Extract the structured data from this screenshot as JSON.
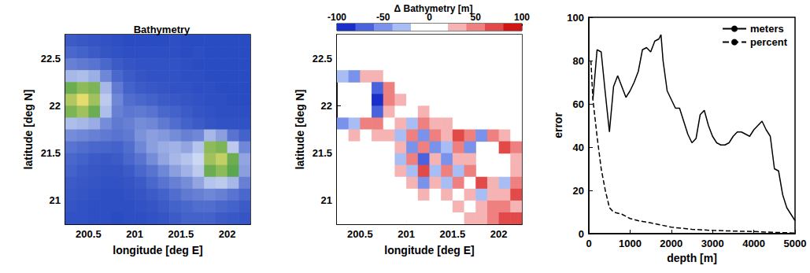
{
  "chart_data": [
    {
      "type": "heatmap",
      "title": "Bathymetry",
      "xlabel": "longitude [deg E]",
      "ylabel": "latitude [deg N]",
      "xlim": [
        200.25,
        202.25
      ],
      "ylim": [
        20.75,
        22.75
      ],
      "xticks": [
        200.5,
        201,
        201.5,
        202
      ],
      "yticks": [
        21,
        21.5,
        22,
        22.5
      ],
      "x": [
        200.3125,
        200.4375,
        200.5625,
        200.6875,
        200.8125,
        200.9375,
        201.0625,
        201.1875,
        201.3125,
        201.4375,
        201.5625,
        201.6875,
        201.8125,
        201.9375,
        202.0625,
        202.1875
      ],
      "y": [
        22.6875,
        22.5625,
        22.4375,
        22.3125,
        22.1875,
        22.0625,
        21.9375,
        21.8125,
        21.6875,
        21.5625,
        21.4375,
        21.3125,
        21.1875,
        21.0625,
        20.9375,
        20.8125
      ],
      "cells": [
        [
          -4200,
          -4300,
          -4400,
          -4500,
          -4600,
          -4700,
          -4700,
          -4700,
          -4700,
          -4600,
          -4700,
          -4700,
          -4700,
          -4700,
          -4700,
          -4700
        ],
        [
          -3800,
          -4000,
          -4200,
          -4400,
          -4500,
          -4600,
          -4600,
          -4600,
          -4600,
          -4600,
          -4700,
          -4600,
          -4700,
          -4700,
          -4700,
          -4700
        ],
        [
          -3000,
          -3200,
          -3400,
          -3800,
          -4200,
          -4400,
          -4500,
          -4500,
          -4500,
          -4500,
          -4600,
          -4700,
          -4700,
          -4700,
          -4700,
          -4700
        ],
        [
          -1200,
          -1000,
          -1500,
          -2800,
          -3800,
          -4200,
          -4400,
          -4500,
          -4500,
          -4500,
          -4600,
          -4600,
          -4700,
          -4700,
          -4700,
          -4700
        ],
        [
          200,
          400,
          300,
          -1200,
          -3200,
          -4000,
          -4200,
          -4300,
          -4400,
          -4500,
          -4500,
          -4600,
          -4600,
          -4700,
          -4700,
          -4700
        ],
        [
          600,
          900,
          500,
          -600,
          -2800,
          -3600,
          -3800,
          -4000,
          -4200,
          -4300,
          -4400,
          -4500,
          -4600,
          -4600,
          -4700,
          -4700
        ],
        [
          300,
          500,
          200,
          -1000,
          -3000,
          -3300,
          -3200,
          -3400,
          -3800,
          -4000,
          -4200,
          -4400,
          -4500,
          -4600,
          -4600,
          -4600
        ],
        [
          -1000,
          -1200,
          -1600,
          -2600,
          -3200,
          -3000,
          -2600,
          -2800,
          -3200,
          -3600,
          -4000,
          -4200,
          -4400,
          -4500,
          -4500,
          -4500
        ],
        [
          -2600,
          -2800,
          -3000,
          -3200,
          -3400,
          -3200,
          -2400,
          -2000,
          -2200,
          -2600,
          -3000,
          -2800,
          -1200,
          -2000,
          -3400,
          -4000
        ],
        [
          -3400,
          -3600,
          -3800,
          -3900,
          -4000,
          -3600,
          -2800,
          -2000,
          -1600,
          -1400,
          -1800,
          -800,
          400,
          300,
          -600,
          -2800
        ],
        [
          -3800,
          -4000,
          -4200,
          -4300,
          -4200,
          -3800,
          -3400,
          -2600,
          -1800,
          -1200,
          -800,
          -200,
          500,
          700,
          200,
          -1800
        ],
        [
          -4000,
          -4200,
          -4300,
          -4400,
          -4400,
          -4200,
          -3800,
          -3400,
          -2800,
          -2000,
          -1400,
          -600,
          200,
          400,
          100,
          -2000
        ],
        [
          -4200,
          -4300,
          -4400,
          -4500,
          -4500,
          -4400,
          -4200,
          -3800,
          -3400,
          -3000,
          -2600,
          -1800,
          -800,
          -600,
          -1200,
          -3000
        ],
        [
          -4300,
          -4400,
          -4500,
          -4600,
          -4600,
          -4500,
          -4400,
          -4200,
          -4000,
          -3600,
          -3200,
          -3000,
          -2800,
          -3000,
          -3400,
          -3800
        ],
        [
          -4400,
          -4500,
          -4600,
          -4600,
          -4600,
          -4600,
          -4500,
          -4400,
          -4200,
          -4000,
          -3800,
          -3600,
          -3600,
          -3800,
          -4000,
          -4200
        ],
        [
          -4500,
          -4500,
          -4600,
          -4600,
          -4700,
          -4600,
          -4600,
          -4500,
          -4400,
          -4200,
          -4000,
          -4000,
          -4000,
          -4200,
          -4300,
          -4400
        ]
      ]
    },
    {
      "type": "heatmap",
      "title": "Δ Bathymetry [m]",
      "xlabel": "longitude [deg E]",
      "ylabel": "latitude [deg N]",
      "xlim": [
        200.25,
        202.25
      ],
      "ylim": [
        20.75,
        22.75
      ],
      "xticks": [
        200.5,
        201,
        201.5,
        202
      ],
      "yticks": [
        21,
        21.5,
        22,
        22.5
      ],
      "x": [
        200.3125,
        200.4375,
        200.5625,
        200.6875,
        200.8125,
        200.9375,
        201.0625,
        201.1875,
        201.3125,
        201.4375,
        201.5625,
        201.6875,
        201.8125,
        201.9375,
        202.0625,
        202.1875
      ],
      "y": [
        22.6875,
        22.5625,
        22.4375,
        22.3125,
        22.1875,
        22.0625,
        21.9375,
        21.8125,
        21.6875,
        21.5625,
        21.4375,
        21.3125,
        21.1875,
        21.0625,
        20.9375,
        20.8125
      ],
      "cells": [
        [
          0,
          0,
          0,
          0,
          0,
          5,
          0,
          0,
          0,
          0,
          0,
          0,
          0,
          0,
          0,
          0
        ],
        [
          0,
          5,
          0,
          0,
          0,
          0,
          0,
          10,
          0,
          0,
          0,
          0,
          0,
          0,
          0,
          0
        ],
        [
          10,
          -20,
          15,
          0,
          0,
          0,
          0,
          0,
          0,
          0,
          0,
          0,
          0,
          0,
          0,
          0
        ],
        [
          -40,
          -60,
          30,
          20,
          10,
          0,
          0,
          0,
          -10,
          0,
          0,
          0,
          0,
          0,
          0,
          0
        ],
        [
          null,
          null,
          null,
          -80,
          40,
          10,
          0,
          0,
          0,
          -10,
          0,
          0,
          0,
          0,
          0,
          0
        ],
        [
          null,
          null,
          null,
          -90,
          50,
          20,
          10,
          0,
          0,
          0,
          0,
          0,
          0,
          0,
          0,
          0
        ],
        [
          null,
          null,
          null,
          -70,
          30,
          -20,
          10,
          20,
          10,
          0,
          0,
          0,
          0,
          0,
          0,
          0
        ],
        [
          -50,
          -30,
          40,
          50,
          -20,
          20,
          -30,
          40,
          30,
          20,
          10,
          0,
          0,
          0,
          0,
          0
        ],
        [
          10,
          20,
          10,
          20,
          30,
          -40,
          50,
          -60,
          40,
          30,
          60,
          40,
          -50,
          40,
          30,
          10
        ],
        [
          0,
          10,
          0,
          10,
          -20,
          30,
          -60,
          40,
          -50,
          -30,
          40,
          -60,
          null,
          null,
          60,
          40
        ],
        [
          0,
          0,
          0,
          0,
          10,
          -30,
          50,
          -70,
          30,
          -50,
          20,
          30,
          null,
          null,
          null,
          30
        ],
        [
          0,
          0,
          0,
          0,
          0,
          20,
          -40,
          60,
          -40,
          40,
          -30,
          40,
          null,
          null,
          null,
          20
        ],
        [
          0,
          0,
          0,
          0,
          0,
          10,
          20,
          -50,
          30,
          -30,
          40,
          -20,
          60,
          30,
          -30,
          50
        ],
        [
          0,
          0,
          0,
          0,
          0,
          0,
          10,
          20,
          -20,
          20,
          -10,
          30,
          -40,
          20,
          30,
          60
        ],
        [
          0,
          0,
          0,
          0,
          0,
          0,
          0,
          10,
          10,
          -10,
          20,
          -10,
          20,
          40,
          50,
          30
        ],
        [
          0,
          0,
          0,
          0,
          0,
          0,
          0,
          0,
          10,
          0,
          10,
          20,
          30,
          40,
          60,
          70
        ]
      ],
      "colorbar": {
        "range": [
          -100,
          100
        ],
        "ticks": [
          -100,
          -50,
          0,
          50,
          100
        ],
        "colors": [
          "#1a2fc8",
          "#4a63dc",
          "#7a92ea",
          "#a9bdf5",
          "#ffffff",
          "#ffffff",
          "#f6b3b3",
          "#ee8080",
          "#e24a4a",
          "#d01414"
        ]
      }
    },
    {
      "type": "line",
      "xlabel": "depth [m]",
      "ylabel": "error",
      "xlim": [
        0,
        5000
      ],
      "xticks": [
        0,
        1000,
        2000,
        3000,
        4000,
        5000
      ],
      "ylim": [
        0,
        100
      ],
      "yticks": [
        0,
        20,
        40,
        60,
        80,
        100
      ],
      "legend": "upper right",
      "series": [
        {
          "name": "meters",
          "color": "#000000",
          "line_style": "solid",
          "x": [
            100,
            200,
            300,
            400,
            500,
            600,
            700,
            800,
            900,
            1000,
            1100,
            1200,
            1300,
            1400,
            1500,
            1600,
            1700,
            1750,
            1800,
            1900,
            2000,
            2100,
            2200,
            2300,
            2400,
            2500,
            2600,
            2700,
            2800,
            2900,
            3000,
            3100,
            3200,
            3300,
            3400,
            3500,
            3600,
            3700,
            3800,
            3900,
            4000,
            4100,
            4200,
            4300,
            4400,
            4500,
            4600,
            4700,
            4800,
            4900,
            5000
          ],
          "values": [
            62,
            85,
            84,
            65,
            47,
            68,
            73,
            68,
            63,
            66,
            70,
            75,
            85,
            86,
            84,
            89,
            90,
            92,
            80,
            66,
            62,
            58,
            58,
            52,
            46,
            42,
            44,
            55,
            57,
            50,
            45,
            42,
            41,
            41,
            42,
            45,
            47,
            47,
            46,
            45,
            48,
            50,
            52,
            48,
            45,
            30,
            29,
            18,
            12,
            9,
            6
          ]
        },
        {
          "name": "percent",
          "color": "#000000",
          "line_style": "dashed",
          "x": [
            50,
            100,
            200,
            300,
            400,
            500,
            600,
            800,
            1000,
            1200,
            1500,
            2000,
            2500,
            3000,
            3500,
            4000,
            4500,
            5000
          ],
          "values": [
            80,
            62,
            45,
            30,
            20,
            12,
            10,
            9,
            7,
            6,
            5,
            3,
            2,
            1.5,
            1.2,
            1,
            0.6,
            0.3
          ]
        }
      ]
    }
  ]
}
